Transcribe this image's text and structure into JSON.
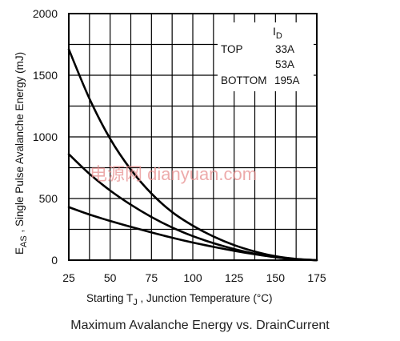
{
  "chart_data": {
    "type": "line",
    "xlabel_prefix": "Starting T",
    "xlabel_sub": "J",
    "xlabel_suffix": " , Junction Temperature (°C)",
    "ylabel_prefix": "E",
    "ylabel_sub": "AS",
    "ylabel_suffix": " , Single Pulse Avalanche Energy (mJ)",
    "xlim": [
      25,
      175
    ],
    "ylim": [
      0,
      2000
    ],
    "x_ticks": [
      "25",
      "50",
      "75",
      "100",
      "125",
      "150",
      "175"
    ],
    "y_ticks": [
      "0",
      "500",
      "1000",
      "1500",
      "2000"
    ],
    "grid": true,
    "legend": {
      "placement": "top-right",
      "header_prefix": "I",
      "header_sub": "D",
      "rows": [
        {
          "label": "TOP",
          "value": "33A"
        },
        {
          "label": "",
          "value": "53A"
        },
        {
          "label": "BOTTOM",
          "value": "195A"
        }
      ]
    },
    "series": [
      {
        "x": [
          25,
          37.5,
          50,
          62.5,
          75,
          87.5,
          100,
          112.5,
          125,
          137.5,
          150,
          162.5,
          175
        ],
        "y": [
          1710,
          1310,
          985,
          735,
          540,
          390,
          280,
          192,
          122,
          70,
          32,
          10,
          0
        ]
      },
      {
        "x": [
          25,
          37.5,
          50,
          62.5,
          75,
          87.5,
          100,
          112.5,
          125,
          137.5,
          150,
          162.5,
          175
        ],
        "y": [
          860,
          700,
          565,
          450,
          350,
          265,
          195,
          138,
          90,
          52,
          24,
          7,
          0
        ]
      },
      {
        "x": [
          25,
          37.5,
          50,
          62.5,
          75,
          87.5,
          100,
          112.5,
          125,
          137.5,
          150,
          162.5,
          175
        ],
        "y": [
          430,
          370,
          318,
          270,
          225,
          182,
          143,
          108,
          76,
          48,
          24,
          8,
          0
        ]
      }
    ]
  },
  "watermark": "电源网 dianyuan.com",
  "caption": "Maximum Avalanche Energy vs. DrainCurrent"
}
